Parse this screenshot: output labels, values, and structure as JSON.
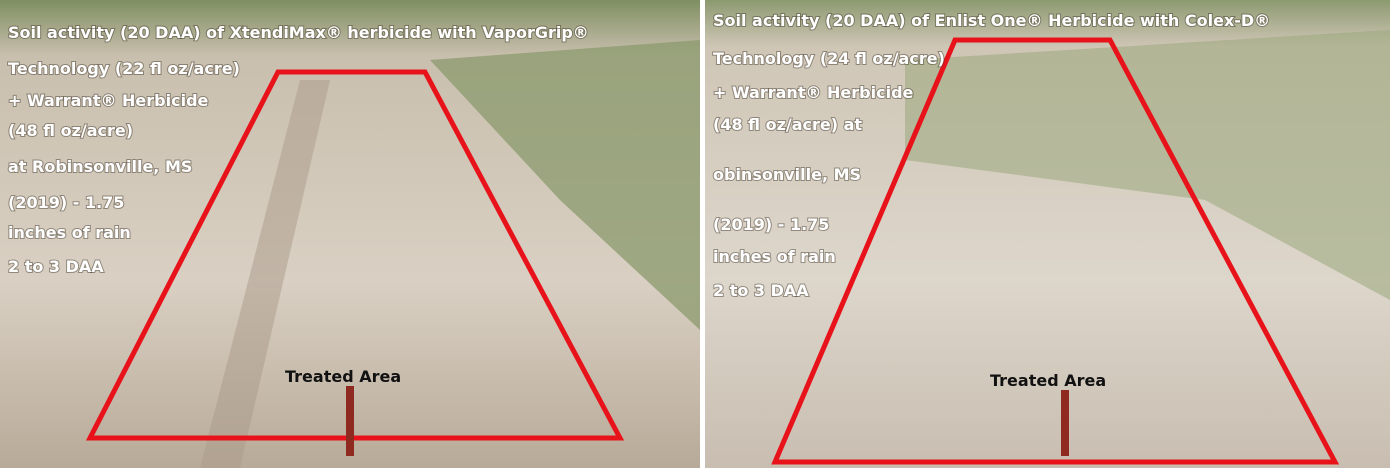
{
  "panels": [
    {
      "caption": [
        "Soil activity (20 DAA) of XtendiMax® herbicide with VaporGrip®",
        "Technology (22 fl oz/acre)",
        "+ Warrant® Herbicide",
        "(48 fl oz/acre)",
        "at Robinsonville, MS",
        "(2019) - 1.75",
        "inches of rain",
        "2 to 3 DAA"
      ],
      "label": "Treated Area"
    },
    {
      "caption": [
        "Soil activity (20 DAA) of Enlist One® Herbicide with Colex-D®",
        "Technology (24 fl oz/acre)",
        "+ Warrant® Herbicide",
        "(48 fl oz/acre) at",
        "obinsonville, MS",
        "(2019) - 1.75",
        "inches of rain",
        "2 to 3 DAA"
      ],
      "label": "Treated Area"
    }
  ]
}
